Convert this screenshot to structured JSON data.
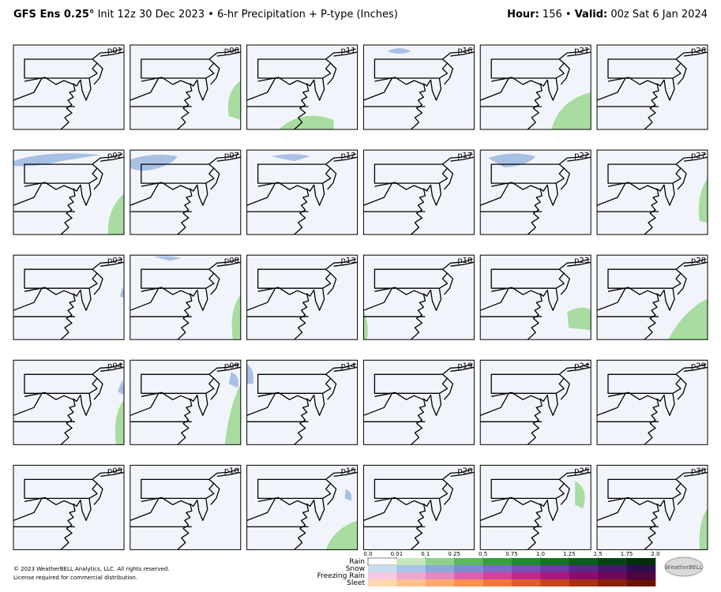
{
  "header": {
    "model": "GFS Ens 0.25°",
    "title": "Init 12z 30 Dec 2023 • 6-hr Precipitation + P-type (Inches)",
    "hour_label": "Hour:",
    "hour": "156",
    "separator": "•",
    "valid_label": "Valid:",
    "valid": "00z Sat 6 Jan 2024"
  },
  "panels": [
    "p01",
    "p02",
    "p03",
    "p04",
    "p05",
    "p06",
    "p07",
    "p08",
    "p09",
    "p10",
    "p11",
    "p12",
    "p13",
    "p14",
    "p15",
    "p16",
    "p17",
    "p18",
    "p19",
    "p20",
    "p21",
    "p22",
    "p23",
    "p24",
    "p25",
    "p26",
    "p27",
    "p28",
    "p29",
    "p30"
  ],
  "legend": {
    "ticks": [
      {
        "value": 0,
        "label": "0.0"
      },
      0.01,
      0.1,
      0.25,
      0.5,
      0.75,
      {
        "value": 1,
        "label": "1.0"
      },
      1.25,
      1.5,
      1.75,
      {
        "value": 2,
        "label": "2.0"
      }
    ],
    "types": [
      {
        "name": "Rain",
        "colors": [
          "#ffffff",
          "#c4e8bc",
          "#8ed08a",
          "#5cb860",
          "#35a040",
          "#1d8a30",
          "#117326",
          "#085c1c",
          "#044514",
          "#02300c"
        ]
      },
      {
        "name": "Snow",
        "colors": [
          "#c8dcf0",
          "#a8c4e8",
          "#8aa8dc",
          "#7c8cd0",
          "#7a6cc4",
          "#7a50b4",
          "#6c3aa0",
          "#5a2888",
          "#461870",
          "#300c50"
        ]
      },
      {
        "name": "Freezing Rain",
        "colors": [
          "#f4c8e0",
          "#eca8d0",
          "#e488c0",
          "#dc60b0",
          "#d440a0",
          "#c02890",
          "#a81880",
          "#8c0c6c",
          "#700658",
          "#500440"
        ]
      },
      {
        "name": "Sleet",
        "colors": [
          "#fcd8b0",
          "#fcc090",
          "#fca870",
          "#f89050",
          "#f07838",
          "#e05c28",
          "#c8441c",
          "#a83014",
          "#88200c",
          "#681404"
        ]
      }
    ]
  },
  "footer": {
    "copyright": "© 2023 WeatherBELL Analytics, LLC. All rights reserved.",
    "license": "License required for commercial distribution.",
    "logo": "WeatherBELL"
  }
}
